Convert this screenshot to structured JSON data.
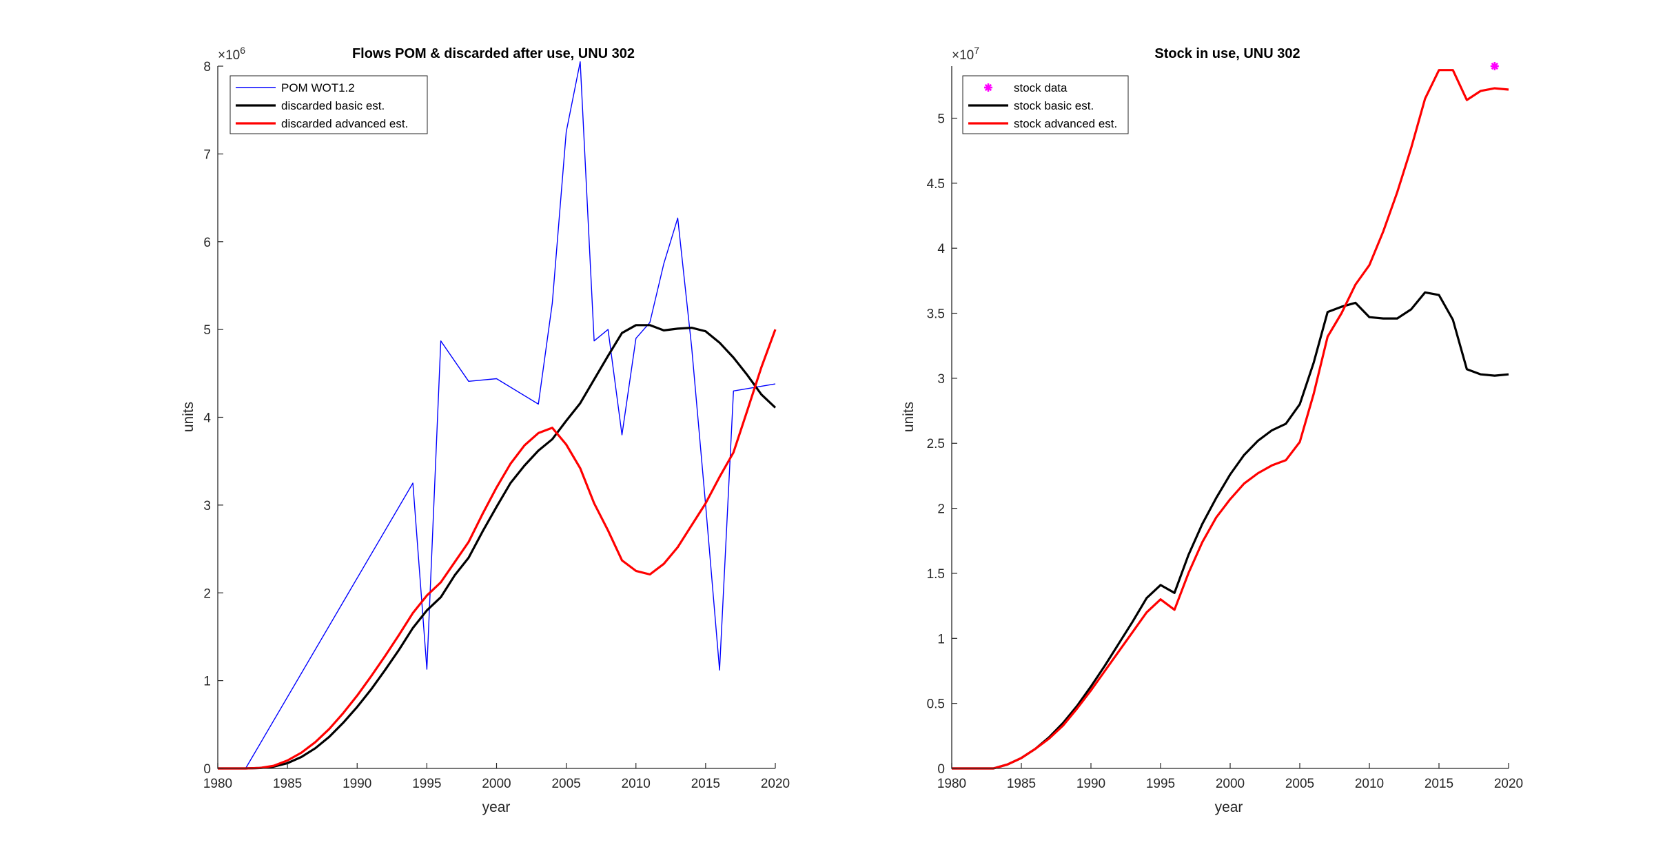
{
  "chart_data": [
    {
      "type": "line",
      "title": "Flows POM & discarded after use, UNU 302",
      "xlabel": "year",
      "ylabel": "units",
      "y_multiplier": "×10",
      "y_multiplier_exp": "6",
      "xlim": [
        1980,
        2020
      ],
      "ylim": [
        0,
        8
      ],
      "x_ticks": [
        1980,
        1985,
        1990,
        1995,
        2000,
        2005,
        2010,
        2015,
        2020
      ],
      "y_ticks": [
        0,
        1,
        2,
        3,
        4,
        5,
        6,
        7,
        8
      ],
      "y_tick_labels": [
        "0",
        "1",
        "2",
        "3",
        "4",
        "5",
        "6",
        "7",
        "8"
      ],
      "grid": false,
      "legend_position": "top-left",
      "series": [
        {
          "name": "POM WOT1.2",
          "color": "#0000ff",
          "marker": "none",
          "x": [
            1980,
            1981,
            1982,
            1994,
            1995,
            1996,
            1998,
            2000,
            2003,
            2004,
            2005,
            2006,
            2007,
            2008,
            2009,
            2010,
            2011,
            2012,
            2013,
            2014,
            2015,
            2016,
            2017,
            2020
          ],
          "y": [
            0,
            0,
            0,
            3.25,
            1.13,
            4.87,
            4.41,
            4.44,
            4.15,
            5.3,
            7.25,
            8.05,
            4.87,
            5.0,
            3.8,
            4.9,
            5.08,
            5.75,
            6.27,
            4.8,
            3.0,
            1.12,
            4.3,
            4.38
          ]
        },
        {
          "name": "discarded basic est.",
          "color": "#000000",
          "marker": "none",
          "x": [
            1980,
            1981,
            1982,
            1983,
            1984,
            1985,
            1986,
            1987,
            1988,
            1989,
            1990,
            1991,
            1992,
            1993,
            1994,
            1995,
            1996,
            1997,
            1998,
            1999,
            2000,
            2001,
            2002,
            2003,
            2004,
            2005,
            2006,
            2007,
            2008,
            2009,
            2010,
            2011,
            2012,
            2013,
            2014,
            2015,
            2016,
            2017,
            2018,
            2019,
            2020
          ],
          "y": [
            0,
            0,
            0,
            0.005,
            0.02,
            0.06,
            0.13,
            0.23,
            0.36,
            0.52,
            0.7,
            0.9,
            1.12,
            1.35,
            1.6,
            1.8,
            1.95,
            2.2,
            2.4,
            2.7,
            2.98,
            3.25,
            3.45,
            3.62,
            3.75,
            3.96,
            4.16,
            4.43,
            4.7,
            4.96,
            5.05,
            5.05,
            4.99,
            5.01,
            5.02,
            4.98,
            4.85,
            4.68,
            4.48,
            4.26,
            4.11
          ]
        },
        {
          "name": "discarded advanced est.",
          "color": "#ff0000",
          "marker": "none",
          "x": [
            1980,
            1981,
            1982,
            1983,
            1984,
            1985,
            1986,
            1987,
            1988,
            1989,
            1990,
            1991,
            1992,
            1993,
            1994,
            1995,
            1996,
            1997,
            1998,
            1999,
            2000,
            2001,
            2002,
            2003,
            2004,
            2005,
            2006,
            2007,
            2008,
            2009,
            2010,
            2011,
            2012,
            2013,
            2014,
            2015,
            2016,
            2017,
            2018,
            2019,
            2020
          ],
          "y": [
            0,
            0,
            0,
            0.005,
            0.03,
            0.09,
            0.18,
            0.3,
            0.45,
            0.63,
            0.83,
            1.05,
            1.28,
            1.52,
            1.77,
            1.97,
            2.12,
            2.35,
            2.58,
            2.9,
            3.2,
            3.47,
            3.68,
            3.82,
            3.88,
            3.69,
            3.42,
            3.02,
            2.71,
            2.37,
            2.25,
            2.21,
            2.33,
            2.52,
            2.77,
            3.02,
            3.32,
            3.6,
            4.08,
            4.57,
            5.0
          ]
        }
      ]
    },
    {
      "type": "line",
      "title": "Stock in use, UNU 302",
      "xlabel": "year",
      "ylabel": "units",
      "y_multiplier": "×10",
      "y_multiplier_exp": "7",
      "xlim": [
        1980,
        2020
      ],
      "ylim": [
        0,
        5.4
      ],
      "x_ticks": [
        1980,
        1985,
        1990,
        1995,
        2000,
        2005,
        2010,
        2015,
        2020
      ],
      "y_ticks": [
        0,
        0.5,
        1,
        1.5,
        2,
        2.5,
        3,
        3.5,
        4,
        4.5,
        5
      ],
      "y_tick_labels": [
        "0",
        "0.5",
        "1",
        "1.5",
        "2",
        "2.5",
        "3",
        "3.5",
        "4",
        "4.5",
        "5"
      ],
      "grid": false,
      "legend_position": "top-left",
      "series": [
        {
          "name": "stock data",
          "color": "#ff00ff",
          "marker": "asterisk",
          "line": "none",
          "x": [
            2019
          ],
          "y": [
            5.4
          ]
        },
        {
          "name": "stock basic est.",
          "color": "#000000",
          "marker": "none",
          "x": [
            1980,
            1981,
            1982,
            1983,
            1984,
            1985,
            1986,
            1987,
            1988,
            1989,
            1990,
            1991,
            1992,
            1993,
            1994,
            1995,
            1996,
            1997,
            1998,
            1999,
            2000,
            2001,
            2002,
            2003,
            2004,
            2005,
            2006,
            2007,
            2008,
            2009,
            2010,
            2011,
            2012,
            2013,
            2014,
            2015,
            2016,
            2017,
            2018,
            2019,
            2020
          ],
          "y": [
            0,
            0,
            0,
            0,
            0.03,
            0.08,
            0.15,
            0.24,
            0.35,
            0.48,
            0.63,
            0.79,
            0.96,
            1.13,
            1.31,
            1.41,
            1.35,
            1.64,
            1.88,
            2.08,
            2.26,
            2.41,
            2.52,
            2.6,
            2.65,
            2.8,
            3.12,
            3.51,
            3.55,
            3.58,
            3.47,
            3.46,
            3.46,
            3.53,
            3.66,
            3.64,
            3.45,
            3.07,
            3.03,
            3.02,
            3.03
          ]
        },
        {
          "name": "stock advanced est.",
          "color": "#ff0000",
          "marker": "none",
          "x": [
            1980,
            1981,
            1982,
            1983,
            1984,
            1985,
            1986,
            1987,
            1988,
            1989,
            1990,
            1991,
            1992,
            1993,
            1994,
            1995,
            1996,
            1997,
            1998,
            1999,
            2000,
            2001,
            2002,
            2003,
            2004,
            2005,
            2006,
            2007,
            2008,
            2009,
            2010,
            2011,
            2012,
            2013,
            2014,
            2015,
            2016,
            2017,
            2018,
            2019,
            2020
          ],
          "y": [
            0,
            0,
            0,
            0,
            0.03,
            0.08,
            0.15,
            0.23,
            0.33,
            0.46,
            0.6,
            0.75,
            0.9,
            1.05,
            1.2,
            1.3,
            1.22,
            1.5,
            1.74,
            1.93,
            2.07,
            2.19,
            2.27,
            2.33,
            2.37,
            2.51,
            2.88,
            3.32,
            3.5,
            3.72,
            3.87,
            4.13,
            4.43,
            4.77,
            5.15,
            5.37,
            5.37,
            5.14,
            5.21,
            5.23,
            5.22
          ]
        }
      ]
    }
  ]
}
